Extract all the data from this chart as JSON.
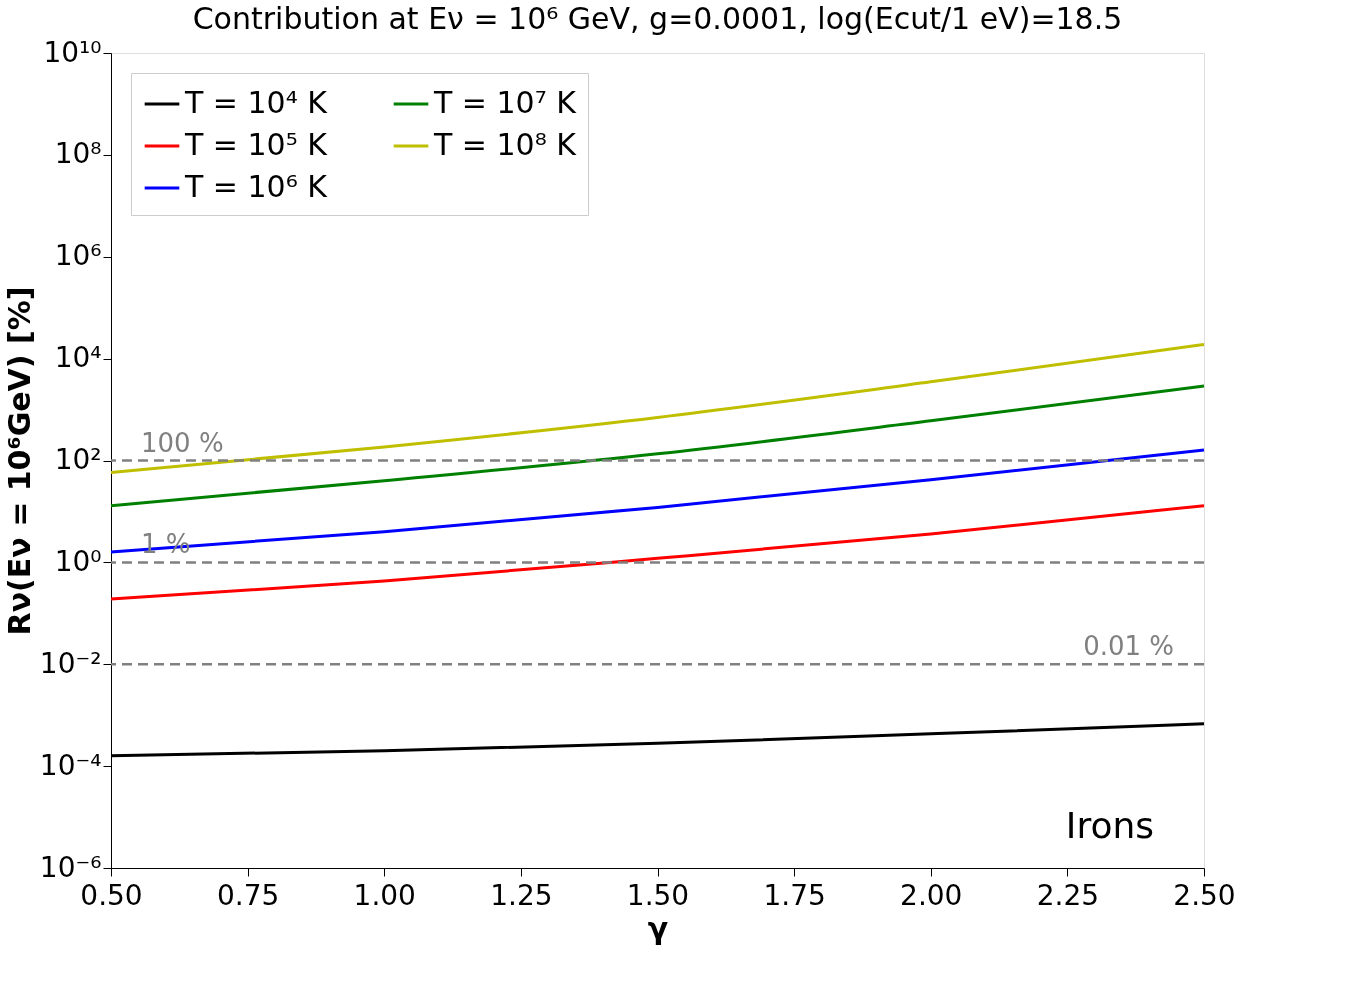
{
  "chart_data": {
    "type": "line",
    "title": "Contribution at Eν = 10⁶ GeV, g=0.0001, log(Ecut/1 eV)=18.5",
    "xlabel": "γ",
    "ylabel": "Rν(Eν = 10⁶GeV) [%]",
    "x": [
      0.5,
      1.0,
      1.5,
      2.0,
      2.5
    ],
    "series": [
      {
        "name": "T = 10⁴ K",
        "color": "#000000",
        "values": [
          0.00016,
          0.0002,
          0.00028,
          0.00043,
          0.00068
        ]
      },
      {
        "name": "T = 10⁵ K",
        "color": "#ff0000",
        "values": [
          0.19,
          0.43,
          1.2,
          3.6,
          13
        ]
      },
      {
        "name": "T = 10⁶ K",
        "color": "#0000ff",
        "values": [
          1.6,
          4,
          12,
          42,
          160
        ]
      },
      {
        "name": "T = 10⁷ K",
        "color": "#008000",
        "values": [
          13,
          40,
          135,
          600,
          2900
        ]
      },
      {
        "name": "T = 10⁸ K",
        "color": "#bfbf00",
        "values": [
          58,
          185,
          700,
          3500,
          19000
        ]
      }
    ],
    "xlim": [
      0.5,
      2.5
    ],
    "ylim": [
      1e-06,
      10000000000.0
    ],
    "xticks": [
      {
        "value": 0.5,
        "label": "0.50"
      },
      {
        "value": 0.75,
        "label": "0.75"
      },
      {
        "value": 1.0,
        "label": "1.00"
      },
      {
        "value": 1.25,
        "label": "1.25"
      },
      {
        "value": 1.5,
        "label": "1.50"
      },
      {
        "value": 1.75,
        "label": "1.75"
      },
      {
        "value": 2.0,
        "label": "2.00"
      },
      {
        "value": 2.25,
        "label": "2.25"
      },
      {
        "value": 2.5,
        "label": "2.50"
      }
    ],
    "yticks": [
      {
        "value": 1e-06,
        "label": "10⁻⁶"
      },
      {
        "value": 0.0001,
        "label": "10⁻⁴"
      },
      {
        "value": 0.01,
        "label": "10⁻²"
      },
      {
        "value": 1,
        "label": "10⁰"
      },
      {
        "value": 100,
        "label": "10²"
      },
      {
        "value": 10000,
        "label": "10⁴"
      },
      {
        "value": 1000000,
        "label": "10⁶"
      },
      {
        "value": 100000000,
        "label": "10⁸"
      },
      {
        "value": 10000000000,
        "label": "10¹⁰"
      }
    ],
    "ref_lines": [
      {
        "axis": "y",
        "value": 100,
        "label": "100 %",
        "color": "#808080",
        "line_style": "dashed"
      },
      {
        "axis": "y",
        "value": 1,
        "label": "1 %",
        "color": "#808080",
        "line_style": "dashed"
      },
      {
        "axis": "y",
        "value": 0.01,
        "label": "0.01 %",
        "color": "#808080",
        "line_style": "dashed"
      }
    ],
    "annotations": [
      "Irons"
    ],
    "log": "y",
    "grid": false,
    "legend": "top left",
    "line_style": "solid",
    "marker": "none"
  }
}
